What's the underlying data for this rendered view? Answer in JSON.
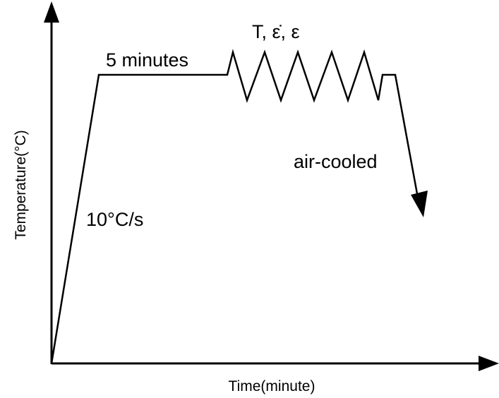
{
  "axes": {
    "y_label": "Temperature(°C)",
    "x_label": "Time(minute)"
  },
  "annotations": {
    "hold": "5 minutes",
    "deformation": "T, ε̇, ε",
    "cooling": "air-cooled",
    "heating_rate": "10°C/s"
  }
}
